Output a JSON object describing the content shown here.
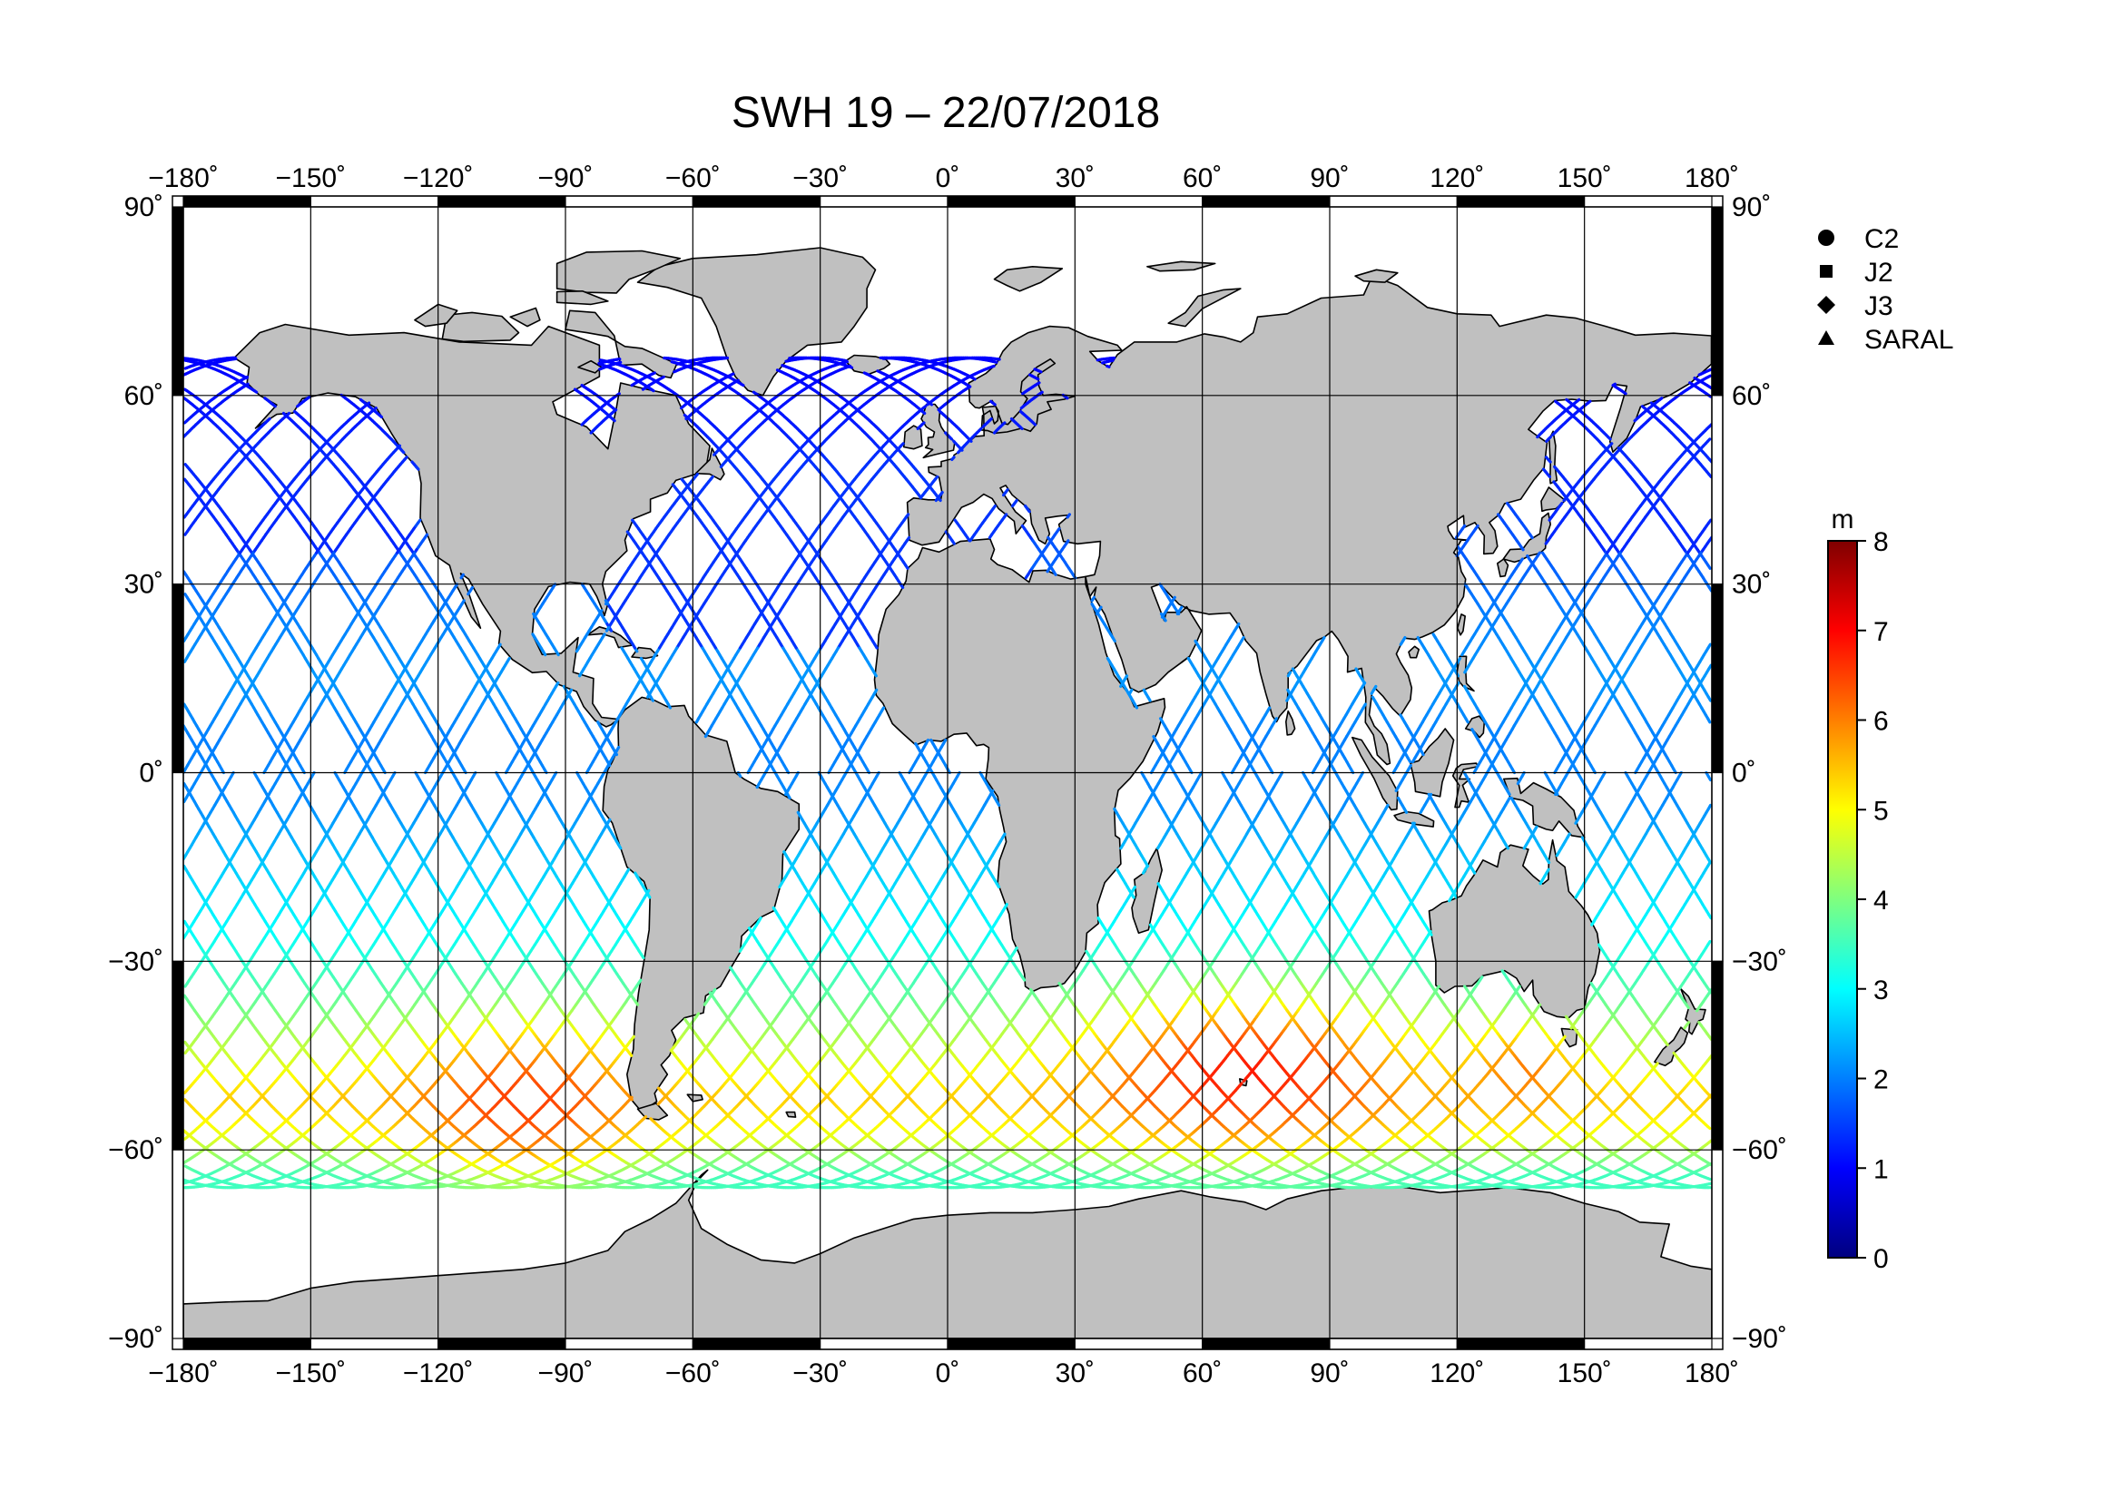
{
  "title": "SWH 19 – 22/07/2018",
  "map": {
    "projection": "plate-carree",
    "lon_range": [
      -180,
      180
    ],
    "lat_range": [
      -90,
      90
    ],
    "grid_lon": [
      -150,
      -120,
      -90,
      -60,
      -30,
      0,
      30,
      60,
      90,
      120,
      150
    ],
    "grid_lat": [
      -60,
      -30,
      0,
      30,
      60
    ],
    "lon_ticks": [
      -180,
      -150,
      -120,
      -90,
      -60,
      -30,
      0,
      30,
      60,
      90,
      120,
      150,
      180
    ],
    "lat_ticks": [
      -90,
      -60,
      -30,
      0,
      30,
      60,
      90
    ],
    "lon_tick_labels": [
      "−180˚",
      "−150˚",
      "−120˚",
      "−90˚",
      "−60˚",
      "−30˚",
      "0˚",
      "30˚",
      "60˚",
      "90˚",
      "120˚",
      "150˚",
      "180˚"
    ],
    "lat_tick_labels": [
      "−90˚",
      "−60˚",
      "−30˚",
      "0˚",
      "30˚",
      "60˚",
      "90˚"
    ],
    "land_color": "#c0c0c0",
    "ocean_color": "#ffffff",
    "coast_color": "#000000",
    "frame_color": "#000000"
  },
  "legend": {
    "items": [
      {
        "label": "C2",
        "symbol": "circle"
      },
      {
        "label": "J2",
        "symbol": "square"
      },
      {
        "label": "J3",
        "symbol": "diamond"
      },
      {
        "label": "SARAL",
        "symbol": "triangle"
      }
    ]
  },
  "colorbar": {
    "unit": "m",
    "min": 0,
    "max": 8,
    "ticks": [
      {
        "value": 0,
        "label": "0"
      },
      {
        "value": 1,
        "label": "1"
      },
      {
        "value": 2,
        "label": "2"
      },
      {
        "value": 3,
        "label": "3"
      },
      {
        "value": 4,
        "label": "4"
      },
      {
        "value": 5,
        "label": "5"
      },
      {
        "value": 6,
        "label": "6"
      },
      {
        "value": 7,
        "label": "7"
      },
      {
        "value": 8,
        "label": "8"
      }
    ],
    "colors": [
      "#00007f",
      "#0000ff",
      "#007fff",
      "#00ffff",
      "#7fff7f",
      "#ffff00",
      "#ff7f00",
      "#ff0000",
      "#7f0000"
    ]
  },
  "chart_data": {
    "type": "scatter",
    "title": "SWH 19 – 22/07/2018",
    "variable": "significant wave height",
    "unit": "m",
    "color_range": [
      0,
      8
    ],
    "xlim": [
      -180,
      180
    ],
    "ylim": [
      -90,
      90
    ],
    "series": [
      {
        "name": "C2",
        "symbol": "circle"
      },
      {
        "name": "J2",
        "symbol": "square"
      },
      {
        "name": "J3",
        "symbol": "diamond"
      },
      {
        "name": "SARAL",
        "symbol": "triangle"
      }
    ],
    "swh_by_latitude": [
      {
        "lat": 65,
        "swh": 1.0
      },
      {
        "lat": 55,
        "swh": 1.2
      },
      {
        "lat": 45,
        "swh": 1.5
      },
      {
        "lat": 35,
        "swh": 1.7
      },
      {
        "lat": 25,
        "swh": 2.0
      },
      {
        "lat": 15,
        "swh": 2.2
      },
      {
        "lat": 5,
        "swh": 2.0
      },
      {
        "lat": -5,
        "swh": 2.1
      },
      {
        "lat": -15,
        "swh": 2.6
      },
      {
        "lat": -25,
        "swh": 3.0
      },
      {
        "lat": -35,
        "swh": 3.7
      },
      {
        "lat": -45,
        "swh": 4.6
      },
      {
        "lat": -52,
        "swh": 5.4
      },
      {
        "lat": -58,
        "swh": 4.8
      },
      {
        "lat": -64,
        "swh": 3.5
      }
    ],
    "high_swh_regions": [
      {
        "lon_range": [
          -130,
          -70
        ],
        "lat_range": [
          -65,
          -40
        ],
        "swh": 6.5
      },
      {
        "lon_range": [
          30,
          110
        ],
        "lat_range": [
          -60,
          -35
        ],
        "swh": 6.8
      },
      {
        "lon_range": [
          120,
          150
        ],
        "lat_range": [
          -55,
          -40
        ],
        "swh": 6.0
      }
    ]
  }
}
